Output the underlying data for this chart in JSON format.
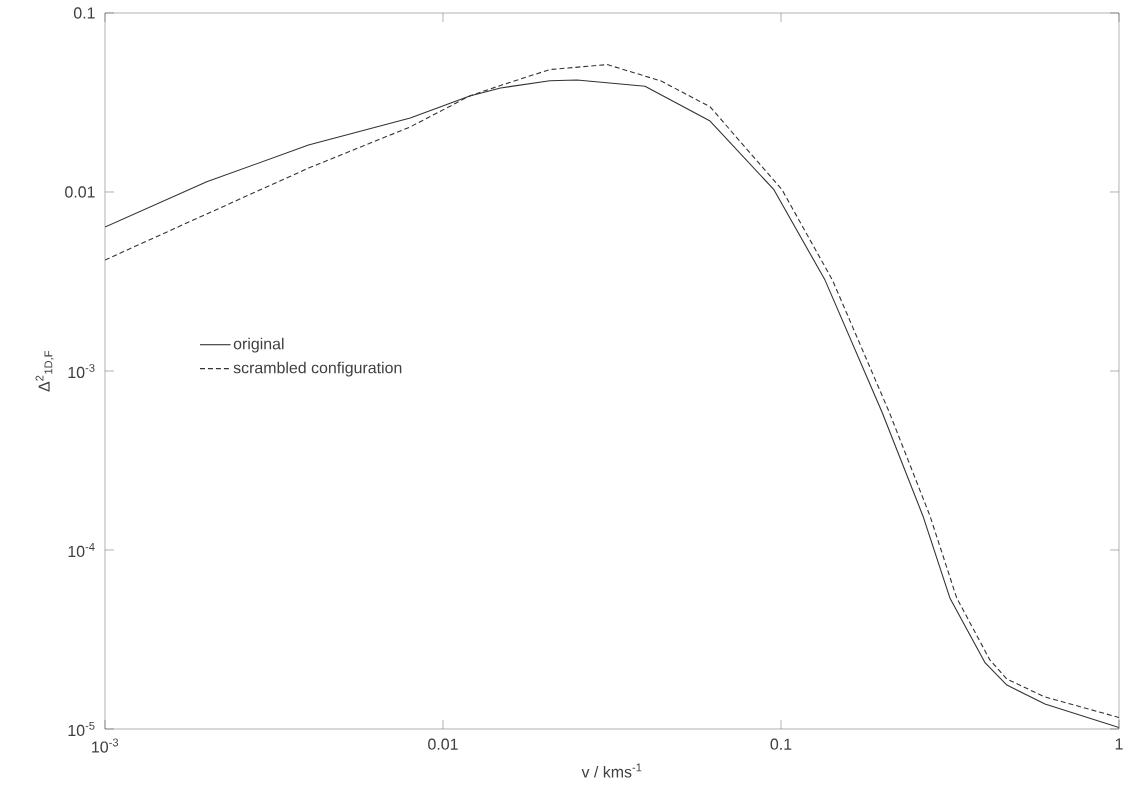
{
  "chart_data": {
    "type": "line",
    "xlabel": "v / kms$^{-1}$",
    "ylabel": "Δ$^{2}$$_{1D,F}$",
    "log": "xy",
    "xlim": [
      0.001,
      1
    ],
    "ylim": [
      1e-05,
      0.1
    ],
    "xticks": [
      {
        "value": 0.001,
        "label": "10$^{-3}$"
      },
      0.01,
      0.1,
      1
    ],
    "yticks": [
      {
        "value": 1e-05,
        "label": "10$^{-5}$"
      },
      {
        "value": 0.0001,
        "label": "10$^{-4}$"
      },
      {
        "value": 0.001,
        "label": "10$^{-3}$"
      },
      0.01,
      0.1
    ],
    "legend": "left",
    "grid": false,
    "marker": "none",
    "series": [
      {
        "name": "original",
        "color": "#333333",
        "line_style": "solid",
        "x": [
          0.001,
          0.002,
          0.004,
          0.008,
          0.012,
          0.0148,
          0.0207,
          0.0249,
          0.0396,
          0.0617,
          0.0953,
          0.135,
          0.199,
          0.263,
          0.316,
          0.402,
          0.466,
          0.604,
          1
        ],
        "values": [
          0.00637,
          0.0114,
          0.0183,
          0.0259,
          0.0344,
          0.0381,
          0.0418,
          0.0422,
          0.039,
          0.0249,
          0.0103,
          0.00322,
          0.00059,
          0.000155,
          5.4e-05,
          2.34e-05,
          1.76e-05,
          1.38e-05,
          1.02e-05
        ]
      },
      {
        "name": "scrambled configuration",
        "color": "#333333",
        "line_style": "dashed",
        "x": [
          0.001,
          0.002,
          0.004,
          0.008,
          0.012,
          0.0148,
          0.0207,
          0.0306,
          0.0442,
          0.0617,
          0.1007,
          0.142,
          0.209,
          0.276,
          0.331,
          0.415,
          0.466,
          0.604,
          1
        ],
        "values": [
          0.00417,
          0.00754,
          0.0136,
          0.0231,
          0.0344,
          0.0394,
          0.0483,
          0.0515,
          0.0417,
          0.0299,
          0.0103,
          0.00322,
          0.00059,
          0.000155,
          5.4e-05,
          2.43e-05,
          1.9e-05,
          1.51e-05,
          1.16e-05
        ]
      }
    ]
  }
}
